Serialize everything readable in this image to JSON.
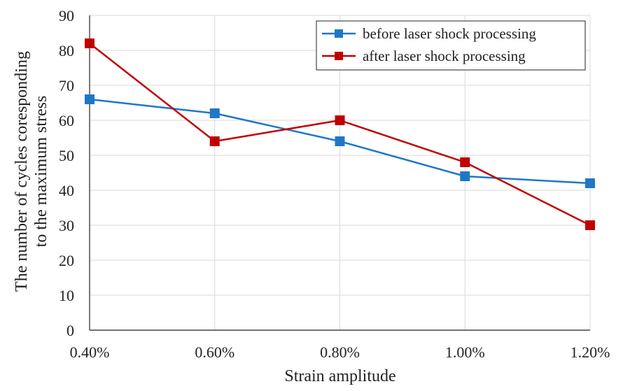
{
  "chart_data": {
    "type": "line",
    "title": "",
    "xlabel": "Strain amplitude",
    "ylabel_lines": [
      "The number of cycles coresponding",
      "to the maximum stress"
    ],
    "categories": [
      "0.40%",
      "0.60%",
      "0.80%",
      "1.00%",
      "1.20%"
    ],
    "ylim": [
      0,
      90
    ],
    "yticks": [
      0,
      10,
      20,
      30,
      40,
      50,
      60,
      70,
      80,
      90
    ],
    "grid": true,
    "legend_position": "top-right",
    "series": [
      {
        "name": "before laser shock processing",
        "color": "#1f77c8",
        "values": [
          66,
          62,
          54,
          44,
          42
        ]
      },
      {
        "name": "after laser shock processing",
        "color": "#c00000",
        "values": [
          82,
          54,
          60,
          48,
          30
        ]
      }
    ]
  }
}
